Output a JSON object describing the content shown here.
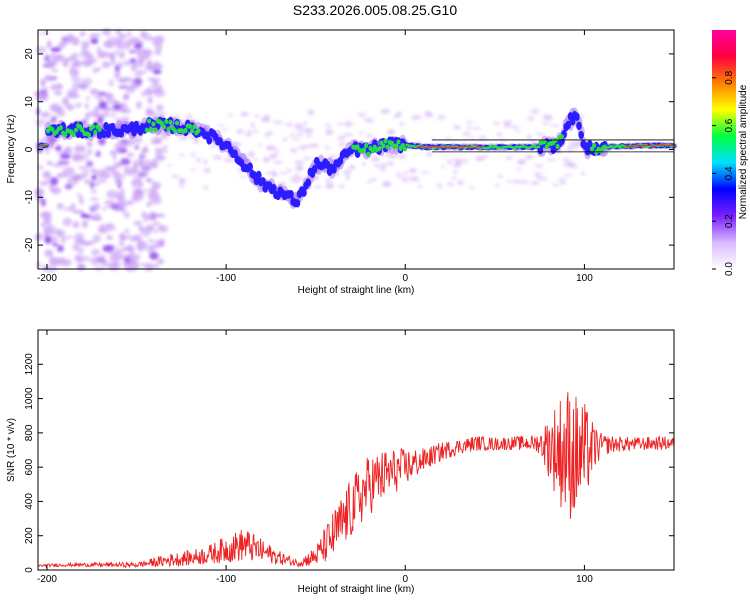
{
  "title": "S233.2026.005.08.25.G10",
  "colors": {
    "snr_line": "#ee2222",
    "track_core": "#ff1f2e",
    "track_mid": "#22dd44",
    "track_outer": "#2a1dff",
    "halo": "#b080f0"
  },
  "chart_data": [
    {
      "type": "heatmap",
      "name": "spectrogram",
      "xlabel": "Height of straight line (km)",
      "ylabel": "Frequency (Hz)",
      "xlim": [
        -205,
        150
      ],
      "ylim": [
        -25,
        25
      ],
      "xticks": [
        -200,
        -100,
        0,
        100
      ],
      "yticks": [
        -20,
        -10,
        0,
        10,
        20
      ],
      "colorbar": {
        "label": "Normalized spectral amplitude",
        "range": [
          0,
          1
        ],
        "ticks": [
          "0.0",
          "0.2",
          "0.4",
          "0.6",
          "0.8"
        ],
        "tick_values": [
          0.0,
          0.2,
          0.4,
          0.6,
          0.8
        ],
        "colormap": [
          "#ffffff",
          "#d9b8ff",
          "#7a20ff",
          "#0000ff",
          "#00e0ff",
          "#00ff40",
          "#ffff00",
          "#ff8000",
          "#ff0040",
          "#ff00a0"
        ]
      },
      "ridge": [
        {
          "x": -200,
          "y": 4,
          "amp": 0.45
        },
        {
          "x": -185,
          "y": 4,
          "amp": 0.5
        },
        {
          "x": -170,
          "y": 4,
          "amp": 0.45
        },
        {
          "x": -155,
          "y": 4,
          "amp": 0.3
        },
        {
          "x": -145,
          "y": 5,
          "amp": 0.45
        },
        {
          "x": -130,
          "y": 5,
          "amp": 0.55
        },
        {
          "x": -115,
          "y": 4,
          "amp": 0.45
        },
        {
          "x": -100,
          "y": 1,
          "amp": 0.4
        },
        {
          "x": -90,
          "y": -3,
          "amp": 0.4
        },
        {
          "x": -80,
          "y": -7,
          "amp": 0.4
        },
        {
          "x": -70,
          "y": -9,
          "amp": 0.35
        },
        {
          "x": -60,
          "y": -11,
          "amp": 0.45
        },
        {
          "x": -50,
          "y": -3,
          "amp": 0.35
        },
        {
          "x": -40,
          "y": -4,
          "amp": 0.4
        },
        {
          "x": -30,
          "y": 0,
          "amp": 0.45
        },
        {
          "x": -20,
          "y": 0,
          "amp": 0.5
        },
        {
          "x": -10,
          "y": 1,
          "amp": 0.55
        },
        {
          "x": 0,
          "y": 1,
          "amp": 0.6
        },
        {
          "x": 10,
          "y": 0.5,
          "amp": 0.9
        },
        {
          "x": 30,
          "y": 0.5,
          "amp": 0.9
        },
        {
          "x": 50,
          "y": 0.5,
          "amp": 0.75
        },
        {
          "x": 70,
          "y": 0.5,
          "amp": 0.65
        },
        {
          "x": 85,
          "y": 1,
          "amp": 0.5
        },
        {
          "x": 95,
          "y": 8,
          "amp": 0.35
        },
        {
          "x": 100,
          "y": 0,
          "amp": 0.4
        },
        {
          "x": 110,
          "y": 0.5,
          "amp": 0.55
        },
        {
          "x": 130,
          "y": 0.8,
          "amp": 0.95
        },
        {
          "x": 150,
          "y": 0.8,
          "amp": 0.95
        }
      ]
    },
    {
      "type": "line",
      "name": "snr",
      "xlabel": "Height of straight line (km)",
      "ylabel": "SNR (10 * v/v)",
      "xlim": [
        -205,
        150
      ],
      "ylim": [
        0,
        1400
      ],
      "xticks": [
        -200,
        -100,
        0,
        100
      ],
      "yticks": [
        0,
        200,
        400,
        600,
        800,
        1000,
        1200
      ],
      "series": [
        {
          "name": "SNR",
          "x": [
            -205,
            -190,
            -170,
            -150,
            -130,
            -120,
            -110,
            -100,
            -90,
            -80,
            -70,
            -60,
            -50,
            -40,
            -30,
            -20,
            -10,
            0,
            10,
            20,
            30,
            40,
            50,
            60,
            70,
            75,
            80,
            85,
            90,
            95,
            100,
            105,
            110,
            120,
            130,
            140,
            150
          ],
          "values": [
            25,
            30,
            30,
            30,
            60,
            70,
            90,
            120,
            150,
            110,
            70,
            40,
            80,
            200,
            360,
            500,
            560,
            600,
            640,
            690,
            720,
            740,
            735,
            740,
            740,
            740,
            720,
            700,
            690,
            660,
            680,
            710,
            730,
            735,
            735,
            740,
            740
          ],
          "noise": [
            8,
            10,
            12,
            15,
            40,
            45,
            55,
            80,
            100,
            70,
            40,
            20,
            60,
            150,
            180,
            180,
            150,
            110,
            70,
            55,
            45,
            45,
            40,
            40,
            45,
            60,
            180,
            300,
            400,
            380,
            300,
            150,
            60,
            45,
            40,
            40,
            40
          ]
        }
      ]
    }
  ]
}
